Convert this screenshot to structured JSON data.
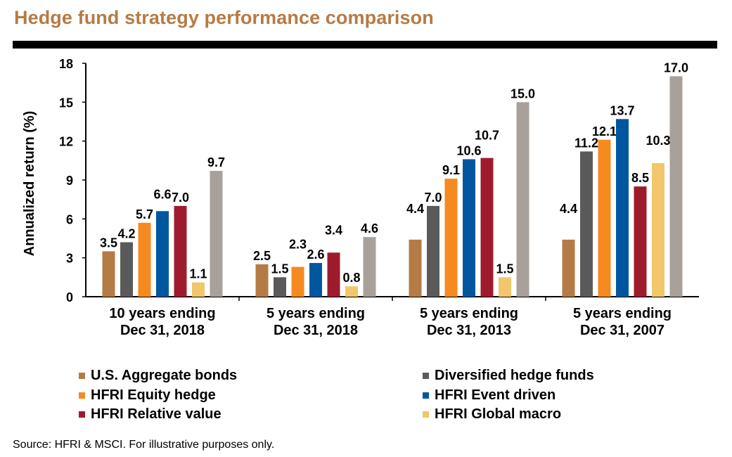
{
  "title": "Hedge fund strategy performance comparison",
  "source": "Source: HFRI & MSCI. For illustrative purposes only.",
  "chart_data": {
    "type": "bar",
    "ylabel": "Annualized return (%)",
    "ylim": [
      0,
      18
    ],
    "yticks": [
      "0",
      "3",
      "6",
      "9",
      "12",
      "15",
      "18"
    ],
    "grid": false,
    "categories": [
      [
        "10 years ending",
        "Dec 31, 2018"
      ],
      [
        "5 years ending",
        "Dec 31, 2018"
      ],
      [
        "5 years ending",
        "Dec 31, 2013"
      ],
      [
        "5 years ending",
        "Dec 31, 2007"
      ]
    ],
    "series": [
      {
        "name": "U.S. Aggregate bonds",
        "color": "#b57b45",
        "values": [
          3.5,
          2.5,
          4.4,
          4.4
        ],
        "labels": [
          "3.5",
          "2.5",
          "4.4",
          "4.4"
        ]
      },
      {
        "name": "Diversified hedge funds",
        "color": "#5a5a5a",
        "values": [
          4.2,
          1.5,
          7.0,
          11.2
        ],
        "labels": [
          "4.2",
          "1.5",
          "7.0",
          "11.2"
        ]
      },
      {
        "name": "HFRI Equity hedge",
        "color": "#f58a20",
        "values": [
          5.7,
          2.3,
          9.1,
          12.1
        ],
        "labels": [
          "5.7",
          "2.3",
          "9.1",
          "12.1"
        ]
      },
      {
        "name": "HFRI Event driven",
        "color": "#0057a0",
        "values": [
          6.6,
          2.6,
          10.6,
          13.7
        ],
        "labels": [
          "6.6",
          "2.6",
          "10.6",
          "13.7"
        ]
      },
      {
        "name": "HFRI Relative value",
        "color": "#9e1b2e",
        "values": [
          7.0,
          3.4,
          10.7,
          8.5
        ],
        "labels": [
          "7.0",
          "3.4",
          "10.7",
          "8.5"
        ]
      },
      {
        "name": "HFRI Global macro",
        "color": "#f2c66b",
        "values": [
          1.1,
          0.8,
          1.5,
          10.3
        ],
        "labels": [
          "1.1",
          "0.8",
          "1.5",
          "10.3"
        ]
      },
      {
        "name": "",
        "color": "#a8a09a",
        "values": [
          9.7,
          4.6,
          15.0,
          17.0
        ],
        "labels": [
          "9.7",
          "4.6",
          "15.0",
          "17.0"
        ]
      }
    ],
    "legend": {
      "position": "bottom",
      "items": [
        {
          "name": "U.S. Aggregate bonds",
          "color": "#b57b45"
        },
        {
          "name": "Diversified hedge funds",
          "color": "#5a5a5a"
        },
        {
          "name": "HFRI Equity hedge",
          "color": "#f58a20"
        },
        {
          "name": "HFRI Event driven",
          "color": "#0057a0"
        },
        {
          "name": "HFRI Relative value",
          "color": "#9e1b2e"
        },
        {
          "name": "HFRI Global macro",
          "color": "#f2c66b"
        }
      ]
    }
  }
}
